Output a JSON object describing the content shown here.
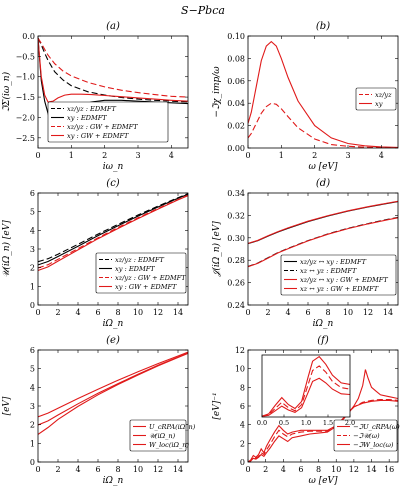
{
  "figure": {
    "title": "S−Pbca"
  },
  "chart_data": [
    {
      "id": "a",
      "type": "line",
      "panel_label": "(a)",
      "xlabel": "iω_n",
      "ylabel": "ℑΣ(iω_n)",
      "xlim": [
        0,
        4.5
      ],
      "ylim": [
        -2.75,
        0
      ],
      "xticks": [
        0,
        1,
        2,
        3,
        4
      ],
      "yticks": [
        0,
        -0.5,
        -1.0,
        -1.5,
        -2.0,
        -2.5
      ],
      "legend_position": "lower-center",
      "series": [
        {
          "name": "xz/yz : EDMFT",
          "color": "#000000",
          "dash": "6,3",
          "x": [
            0,
            0.1,
            0.2,
            0.3,
            0.5,
            0.75,
            1.0,
            1.5,
            2.0,
            2.5,
            3.0,
            3.5,
            4.0,
            4.5
          ],
          "y": [
            -0.05,
            -0.22,
            -0.42,
            -0.6,
            -0.88,
            -1.08,
            -1.22,
            -1.37,
            -1.45,
            -1.51,
            -1.55,
            -1.58,
            -1.6,
            -1.62
          ]
        },
        {
          "name": "xy : EDMFT",
          "color": "#000000",
          "dash": "",
          "x": [
            0,
            0.05,
            0.1,
            0.2,
            0.35,
            0.5,
            0.7,
            0.9,
            1.1,
            1.3,
            1.6,
            2.0,
            2.5,
            3.0,
            3.5,
            4.0,
            4.5
          ],
          "y": [
            -0.05,
            -0.6,
            -1.1,
            -1.6,
            -2.05,
            -2.22,
            -2.12,
            -1.95,
            -1.8,
            -1.7,
            -1.62,
            -1.58,
            -1.58,
            -1.6,
            -1.62,
            -1.64,
            -1.66
          ]
        },
        {
          "name": "xz/yz : GW + EDMFT",
          "color": "#e01a1a",
          "dash": "6,3",
          "x": [
            0,
            0.1,
            0.2,
            0.3,
            0.5,
            0.75,
            1.0,
            1.5,
            2.0,
            2.5,
            3.0,
            3.5,
            4.0,
            4.5
          ],
          "y": [
            -0.05,
            -0.18,
            -0.33,
            -0.47,
            -0.68,
            -0.86,
            -0.98,
            -1.14,
            -1.25,
            -1.33,
            -1.39,
            -1.44,
            -1.48,
            -1.5
          ]
        },
        {
          "name": "xy : GW + EDMFT",
          "color": "#e01a1a",
          "dash": "",
          "x": [
            0,
            0.05,
            0.1,
            0.2,
            0.3,
            0.45,
            0.6,
            0.8,
            1.0,
            1.3,
            1.6,
            2.0,
            2.5,
            3.0,
            3.5,
            4.0,
            4.5
          ],
          "y": [
            -0.05,
            -0.55,
            -1.0,
            -1.45,
            -1.62,
            -1.6,
            -1.52,
            -1.45,
            -1.43,
            -1.43,
            -1.44,
            -1.46,
            -1.49,
            -1.52,
            -1.55,
            -1.58,
            -1.6
          ]
        }
      ]
    },
    {
      "id": "b",
      "type": "line",
      "panel_label": "(b)",
      "xlabel": "ω [eV]",
      "ylabel": "−ℑχ_imp/ω",
      "xlim": [
        0,
        4.5
      ],
      "ylim": [
        0,
        0.1
      ],
      "xticks": [
        0,
        1,
        2,
        3,
        4
      ],
      "yticks": [
        0,
        0.02,
        0.04,
        0.06,
        0.08,
        0.1
      ],
      "legend_position": "right-center",
      "series": [
        {
          "name": "xz/yz",
          "color": "#e01a1a",
          "dash": "6,3",
          "x": [
            0,
            0.1,
            0.25,
            0.4,
            0.55,
            0.7,
            0.85,
            1.0,
            1.2,
            1.5,
            2.0,
            2.5,
            3.0,
            3.5,
            4.0,
            4.5
          ],
          "y": [
            0.009,
            0.013,
            0.022,
            0.031,
            0.037,
            0.04,
            0.039,
            0.035,
            0.028,
            0.018,
            0.008,
            0.003,
            0.0015,
            0.0007,
            0.0004,
            0.0002
          ]
        },
        {
          "name": "xy",
          "color": "#e01a1a",
          "dash": "",
          "x": [
            0,
            0.1,
            0.25,
            0.4,
            0.55,
            0.7,
            0.85,
            1.0,
            1.2,
            1.5,
            2.0,
            2.5,
            3.0,
            3.5,
            4.0,
            4.5
          ],
          "y": [
            0.022,
            0.032,
            0.055,
            0.078,
            0.091,
            0.095,
            0.091,
            0.08,
            0.063,
            0.042,
            0.02,
            0.009,
            0.004,
            0.002,
            0.001,
            0.0005
          ]
        }
      ]
    },
    {
      "id": "c",
      "type": "line",
      "panel_label": "(c)",
      "xlabel": "iΩ_n",
      "ylabel": "𝒰(iΩ_n) [eV]",
      "xlim": [
        0,
        15
      ],
      "ylim": [
        0,
        6
      ],
      "xticks": [
        0,
        2,
        4,
        6,
        8,
        10,
        12,
        14
      ],
      "yticks": [
        0,
        1,
        2,
        3,
        4,
        5,
        6
      ],
      "legend_position": "lower-right",
      "series": [
        {
          "name": "xz/yz : EDMFT",
          "color": "#000000",
          "dash": "6,3",
          "x": [
            0,
            1,
            2,
            4,
            6,
            8,
            10,
            12,
            14,
            15
          ],
          "y": [
            2.32,
            2.48,
            2.72,
            3.25,
            3.8,
            4.32,
            4.82,
            5.3,
            5.75,
            5.96
          ]
        },
        {
          "name": "xy : EDMFT",
          "color": "#000000",
          "dash": "",
          "x": [
            0,
            1,
            2,
            4,
            6,
            8,
            10,
            12,
            14,
            15
          ],
          "y": [
            2.15,
            2.33,
            2.6,
            3.15,
            3.72,
            4.25,
            4.76,
            5.25,
            5.72,
            5.93
          ]
        },
        {
          "name": "xz/yz : GW + EDMFT",
          "color": "#e01a1a",
          "dash": "6,3",
          "x": [
            0,
            1,
            2,
            4,
            6,
            8,
            10,
            12,
            14,
            15
          ],
          "y": [
            1.98,
            2.16,
            2.45,
            3.02,
            3.6,
            4.15,
            4.67,
            5.17,
            5.65,
            5.88
          ]
        },
        {
          "name": "xy : GW + EDMFT",
          "color": "#e01a1a",
          "dash": "",
          "x": [
            0,
            1,
            2,
            4,
            6,
            8,
            10,
            12,
            14,
            15
          ],
          "y": [
            1.85,
            2.04,
            2.35,
            2.95,
            3.55,
            4.1,
            4.63,
            5.14,
            5.63,
            5.86
          ]
        }
      ]
    },
    {
      "id": "d",
      "type": "line",
      "panel_label": "(d)",
      "xlabel": "iΩ_n",
      "ylabel": "𝒥(iΩ_n) [eV]",
      "xlim": [
        0,
        15
      ],
      "ylim": [
        0.24,
        0.34
      ],
      "xticks": [
        0,
        2,
        4,
        6,
        8,
        10,
        12,
        14
      ],
      "yticks": [
        0.24,
        0.26,
        0.28,
        0.3,
        0.32,
        0.34
      ],
      "legend_position": "lower-right",
      "series": [
        {
          "name": "xz/yz ↔ xy : EDMFT",
          "color": "#000000",
          "dash": "",
          "x": [
            0,
            1,
            2,
            3,
            4,
            6,
            8,
            10,
            12,
            14,
            15
          ],
          "y": [
            0.2948,
            0.2975,
            0.3015,
            0.3052,
            0.3085,
            0.3145,
            0.3195,
            0.3238,
            0.3275,
            0.3308,
            0.3323
          ]
        },
        {
          "name": "xz ↔ yz : EDMFT",
          "color": "#000000",
          "dash": "6,3",
          "x": [
            0,
            1,
            2,
            3,
            4,
            6,
            8,
            10,
            12,
            14,
            15
          ],
          "y": [
            0.2745,
            0.2775,
            0.2822,
            0.2868,
            0.2905,
            0.2975,
            0.3035,
            0.3085,
            0.3127,
            0.3165,
            0.3182
          ]
        },
        {
          "name": "xz/yz ↔ xy : GW + EDMFT",
          "color": "#e01a1a",
          "dash": "",
          "x": [
            0,
            1,
            2,
            3,
            4,
            6,
            8,
            10,
            12,
            14,
            15
          ],
          "y": [
            0.295,
            0.2978,
            0.3018,
            0.3055,
            0.3088,
            0.3148,
            0.3198,
            0.3241,
            0.3278,
            0.3311,
            0.3326
          ]
        },
        {
          "name": "xz ↔ yz : GW + EDMFT",
          "color": "#e01a1a",
          "dash": "",
          "x": [
            0,
            1,
            2,
            3,
            4,
            6,
            8,
            10,
            12,
            14,
            15
          ],
          "y": [
            0.2742,
            0.2772,
            0.2819,
            0.2865,
            0.2902,
            0.2972,
            0.3032,
            0.3082,
            0.3124,
            0.3162,
            0.3179
          ]
        }
      ]
    },
    {
      "id": "e",
      "type": "line",
      "panel_label": "(e)",
      "xlabel": "iΩ_n",
      "ylabel": "[eV]",
      "xlim": [
        0,
        15
      ],
      "ylim": [
        0,
        6
      ],
      "xticks": [
        0,
        2,
        4,
        6,
        8,
        10,
        12,
        14
      ],
      "yticks": [
        0,
        1,
        2,
        3,
        4,
        5,
        6
      ],
      "legend_position": "lower-right",
      "series": [
        {
          "name": "U_cRPA(iΩ_n)",
          "color": "#e01a1a",
          "dash": "",
          "x": [
            0,
            1,
            2,
            4,
            6,
            8,
            10,
            12,
            14,
            15
          ],
          "y": [
            2.42,
            2.62,
            2.88,
            3.4,
            3.9,
            4.38,
            4.83,
            5.27,
            5.68,
            5.88
          ]
        },
        {
          "name": "𝒰(iΩ_n)",
          "color": "#e01a1a",
          "dash": "",
          "x": [
            0,
            1,
            2,
            4,
            6,
            8,
            10,
            12,
            14,
            15
          ],
          "y": [
            1.98,
            2.2,
            2.52,
            3.12,
            3.68,
            4.2,
            4.7,
            5.18,
            5.62,
            5.84
          ]
        },
        {
          "name": "W_loc(iΩ_n)",
          "color": "#e01a1a",
          "dash": "",
          "x": [
            0,
            1,
            2,
            4,
            6,
            8,
            10,
            12,
            14,
            15
          ],
          "y": [
            1.48,
            1.85,
            2.28,
            2.98,
            3.6,
            4.15,
            4.66,
            5.15,
            5.6,
            5.82
          ]
        }
      ]
    },
    {
      "id": "f",
      "type": "line",
      "panel_label": "(f)",
      "xlabel": "ω [eV]",
      "ylabel": "[eV]⁻¹",
      "xlim": [
        0,
        17
      ],
      "ylim": [
        0,
        12
      ],
      "xticks": [
        0,
        2,
        4,
        6,
        8,
        10,
        12,
        14,
        16
      ],
      "yticks": [
        0,
        2,
        4,
        6,
        8,
        10,
        12
      ],
      "legend_position": "lower-right",
      "series": [
        {
          "name": "−ℑU_cRPA(ω)",
          "color": "#e01a1a",
          "dash": "",
          "x": [
            0,
            0.3,
            0.6,
            0.9,
            1.2,
            1.5,
            1.8,
            2.1,
            2.5,
            3.0,
            3.5,
            4.0,
            4.5,
            5.0,
            6.0,
            7.0,
            8.0,
            9.0,
            10.0,
            11.0,
            12.0,
            12.5,
            13.0,
            13.3,
            13.6,
            14.0,
            14.5,
            15.0,
            16.0,
            17.0
          ],
          "y": [
            0,
            0.1,
            0.4,
            0.3,
            0.5,
            0.8,
            0.6,
            1.0,
            1.5,
            2.2,
            2.8,
            2.5,
            2.2,
            2.6,
            2.8,
            3.0,
            3.1,
            3.2,
            3.8,
            4.8,
            6.0,
            6.8,
            8.2,
            9.9,
            9.0,
            8.0,
            7.6,
            7.2,
            7.0,
            6.8
          ]
        },
        {
          "name": "−ℑ𝒰(ω)",
          "color": "#e01a1a",
          "dash": "6,3",
          "x": [
            0,
            0.3,
            0.6,
            0.9,
            1.2,
            1.5,
            1.8,
            2.1,
            2.5,
            3.0,
            3.5,
            4.0,
            4.5,
            5.0,
            6.0,
            7.0,
            8.0,
            9.0,
            10.0,
            11.0,
            12.0,
            13.0,
            14.0,
            15.0,
            16.0,
            17.0
          ],
          "y": [
            0,
            0.15,
            0.5,
            0.4,
            0.6,
            1.0,
            0.8,
            1.3,
            1.9,
            2.7,
            3.4,
            3.0,
            2.7,
            3.0,
            3.2,
            3.3,
            3.3,
            3.3,
            3.8,
            4.8,
            5.9,
            6.4,
            6.6,
            6.7,
            6.7,
            6.6
          ]
        },
        {
          "name": "−ℑW_loc(ω)",
          "color": "#e01a1a",
          "dash": "",
          "x": [
            0,
            0.3,
            0.6,
            0.9,
            1.2,
            1.5,
            1.8,
            2.1,
            2.5,
            3.0,
            3.5,
            4.0,
            4.5,
            5.0,
            6.0,
            7.0,
            8.0,
            9.0,
            10.0,
            11.0,
            12.0,
            13.0,
            14.0,
            15.0,
            16.0,
            17.0
          ],
          "y": [
            0,
            0.2,
            0.7,
            0.5,
            0.8,
            1.4,
            1.0,
            1.7,
            2.4,
            3.2,
            3.9,
            3.4,
            3.0,
            3.2,
            3.4,
            3.4,
            3.4,
            3.4,
            3.9,
            4.9,
            5.9,
            6.3,
            6.5,
            6.6,
            6.6,
            6.5
          ]
        }
      ],
      "inset": {
        "xlim": [
          0,
          2.0
        ],
        "ylim": [
          0,
          4
        ],
        "xticks": [
          0.0,
          0.5,
          1.0,
          1.5,
          2.0
        ],
        "xticklabels": [
          "0.0",
          "0.5",
          "1.0",
          "1.5",
          "2.0"
        ],
        "series": [
          {
            "color": "#e01a1a",
            "dash": "",
            "x": [
              0,
              0.15,
              0.3,
              0.45,
              0.6,
              0.75,
              0.9,
              1.05,
              1.15,
              1.3,
              1.45,
              1.6,
              1.8,
              2.0
            ],
            "y": [
              0.05,
              0.1,
              0.4,
              0.7,
              0.45,
              0.3,
              0.6,
              1.6,
              2.3,
              2.5,
              2.2,
              1.8,
              1.5,
              1.45
            ]
          },
          {
            "color": "#e01a1a",
            "dash": "6,3",
            "x": [
              0,
              0.15,
              0.3,
              0.45,
              0.6,
              0.75,
              0.9,
              1.05,
              1.15,
              1.3,
              1.45,
              1.6,
              1.8,
              2.0
            ],
            "y": [
              0.05,
              0.15,
              0.55,
              0.95,
              0.6,
              0.4,
              0.8,
              2.1,
              3.0,
              3.3,
              2.9,
              2.3,
              1.9,
              1.8
            ]
          },
          {
            "color": "#e01a1a",
            "dash": "",
            "x": [
              0,
              0.15,
              0.3,
              0.45,
              0.6,
              0.75,
              0.9,
              1.05,
              1.15,
              1.3,
              1.45,
              1.6,
              1.8,
              2.0
            ],
            "y": [
              0.05,
              0.2,
              0.75,
              1.25,
              0.8,
              0.55,
              1.0,
              2.6,
              3.6,
              3.9,
              3.4,
              2.7,
              2.2,
              2.1
            ]
          }
        ]
      }
    }
  ]
}
